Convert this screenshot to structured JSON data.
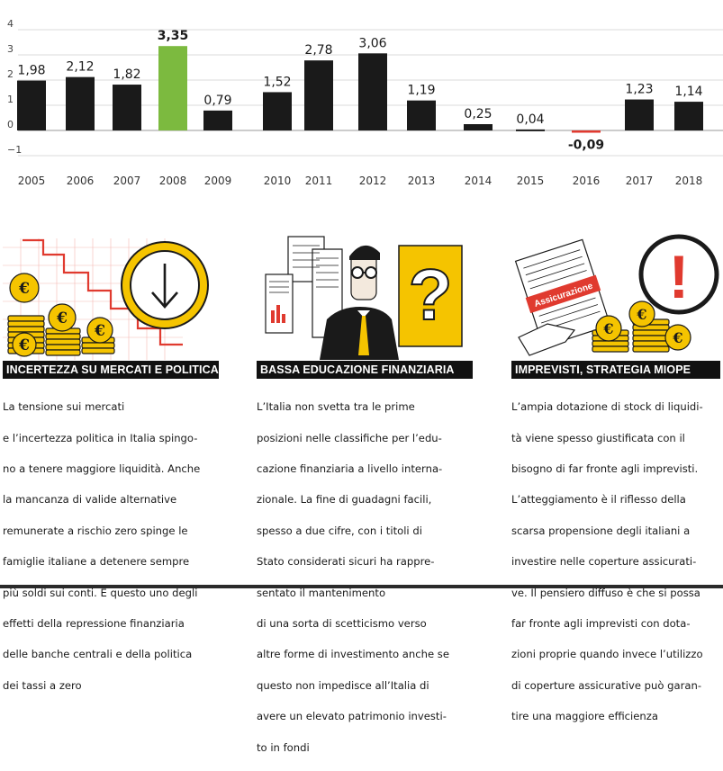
{
  "chart_data": {
    "type": "bar",
    "title": "",
    "xlabel": "",
    "ylabel": "",
    "ylim": [
      -1,
      4
    ],
    "yticks": [
      "4",
      "3",
      "2",
      "1",
      "0",
      "−1"
    ],
    "categories": [
      "2005",
      "2006",
      "2007",
      "2008",
      "2009",
      "2010",
      "2011",
      "2012",
      "2013",
      "2014",
      "2015",
      "2016",
      "2017",
      "2018"
    ],
    "values": [
      1.98,
      2.12,
      1.82,
      3.35,
      0.79,
      1.52,
      2.78,
      3.06,
      1.19,
      0.25,
      0.04,
      -0.09,
      1.23,
      1.14
    ],
    "value_labels": [
      "1,98",
      "2,12",
      "1,82",
      "3,35",
      "0,79",
      "1,52",
      "2,78",
      "3,06",
      "1,19",
      "0,25",
      "0,04",
      "-0,09",
      "1,23",
      "1,14"
    ],
    "highlight": {
      "2008": "#7cba3f",
      "2016": "#e03a2f"
    },
    "bar_color": "#1a1a1a"
  },
  "colors": {
    "accent_yellow": "#f5c400",
    "accent_red": "#e03a2f",
    "accent_green": "#7cba3f"
  },
  "sections": [
    {
      "title": "INCERTEZZA SU MERCATI E POLITICA",
      "icon": "coins-down-arrow-icon",
      "coin_symbol": "€",
      "lines": [
        "La tensione sui mercati",
        "e l’incertezza politica in Italia spingo-",
        "no a tenere maggiore liquidità. Anche",
        "la mancanza di valide alternative",
        "remunerate a rischio zero spinge le",
        "famiglie italiane a detenere sempre",
        "più soldi sui conti. È questo uno degli",
        "effetti della repressione finanziaria",
        "delle banche centrali e della politica",
        "dei tassi a zero"
      ]
    },
    {
      "title": "BASSA EDUCAZIONE FINANZIARIA",
      "icon": "confused-investor-question-icon",
      "question_mark": "?",
      "lines": [
        "L’Italia non svetta tra le prime",
        "posizioni nelle classifiche per l’edu-",
        "cazione finanziaria a livello interna-",
        "zionale. La fine di guadagni facili,",
        "spesso a due cifre, con i titoli di",
        "Stato considerati sicuri ha rappre-",
        "sentato il mantenimento",
        "di una sorta di scetticismo verso",
        "altre forme di investimento anche se",
        "questo non impedisce all’Italia di",
        "avere un elevato patrimonio investi-",
        "to in fondi"
      ]
    },
    {
      "title": "IMPREVISTI, STRATEGIA MIOPE",
      "icon": "insurance-warning-icon",
      "document_label": "Assicurazione",
      "exclamation": "!",
      "coin_symbol": "€",
      "lines": [
        "L’ampia dotazione di stock di liquidi-",
        "tà viene spesso giustificata con il",
        "bisogno di far fronte agli imprevisti.",
        "L’atteggiamento è il riflesso della",
        "scarsa propensione degli italiani a",
        "investire nelle coperture assicurati-",
        "ve. Il pensiero diffuso è che si possa",
        "far fronte agli imprevisti con dota-",
        "zioni proprie quando invece l’utilizzo",
        "di coperture assicurative può garan-",
        "tire una maggiore efficienza"
      ]
    }
  ]
}
